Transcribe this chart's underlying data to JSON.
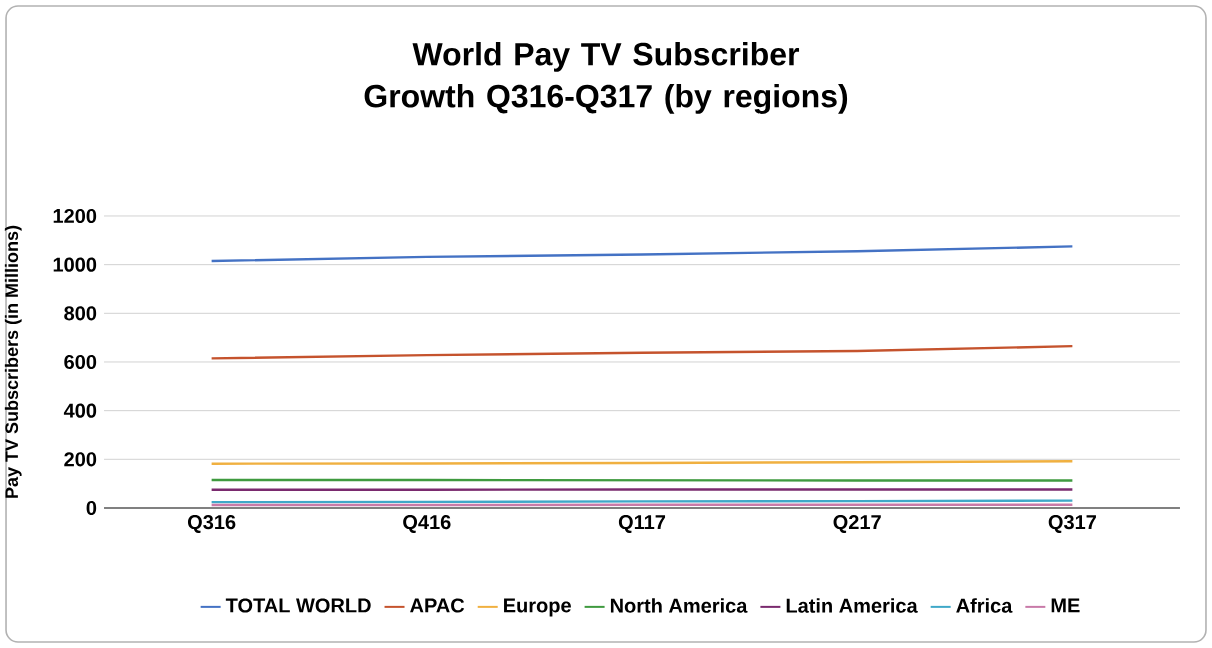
{
  "chart_data": {
    "type": "line",
    "title": "World Pay TV Subscriber Growth Q316-Q317 (by regions)",
    "ylabel": "Pay TV Subscribers (in Millions)",
    "categories": [
      "Q316",
      "Q416",
      "Q117",
      "Q217",
      "Q317"
    ],
    "ylim": [
      0,
      1200
    ],
    "yticks": [
      0,
      200,
      400,
      600,
      800,
      1000,
      1200
    ],
    "grid": "y",
    "legend": "bottom",
    "marker": "none",
    "line_style": "solid",
    "series": [
      {
        "name": "TOTAL WORLD",
        "color": "#4472c4",
        "values": [
          1015,
          1032,
          1042,
          1055,
          1075
        ]
      },
      {
        "name": "APAC",
        "color": "#c5532d",
        "values": [
          615,
          628,
          638,
          645,
          665
        ]
      },
      {
        "name": "Europe",
        "color": "#f0b040",
        "values": [
          182,
          183,
          185,
          188,
          192
        ]
      },
      {
        "name": "North America",
        "color": "#3f9a3f",
        "values": [
          115,
          115,
          114,
          113,
          113
        ]
      },
      {
        "name": "Latin America",
        "color": "#7a2a6e",
        "values": [
          75,
          75,
          76,
          76,
          76
        ]
      },
      {
        "name": "Africa",
        "color": "#3fa8c8",
        "values": [
          24,
          25,
          27,
          28,
          30
        ]
      },
      {
        "name": "ME",
        "color": "#c87aa8",
        "values": [
          12,
          12,
          13,
          13,
          13
        ]
      }
    ]
  }
}
